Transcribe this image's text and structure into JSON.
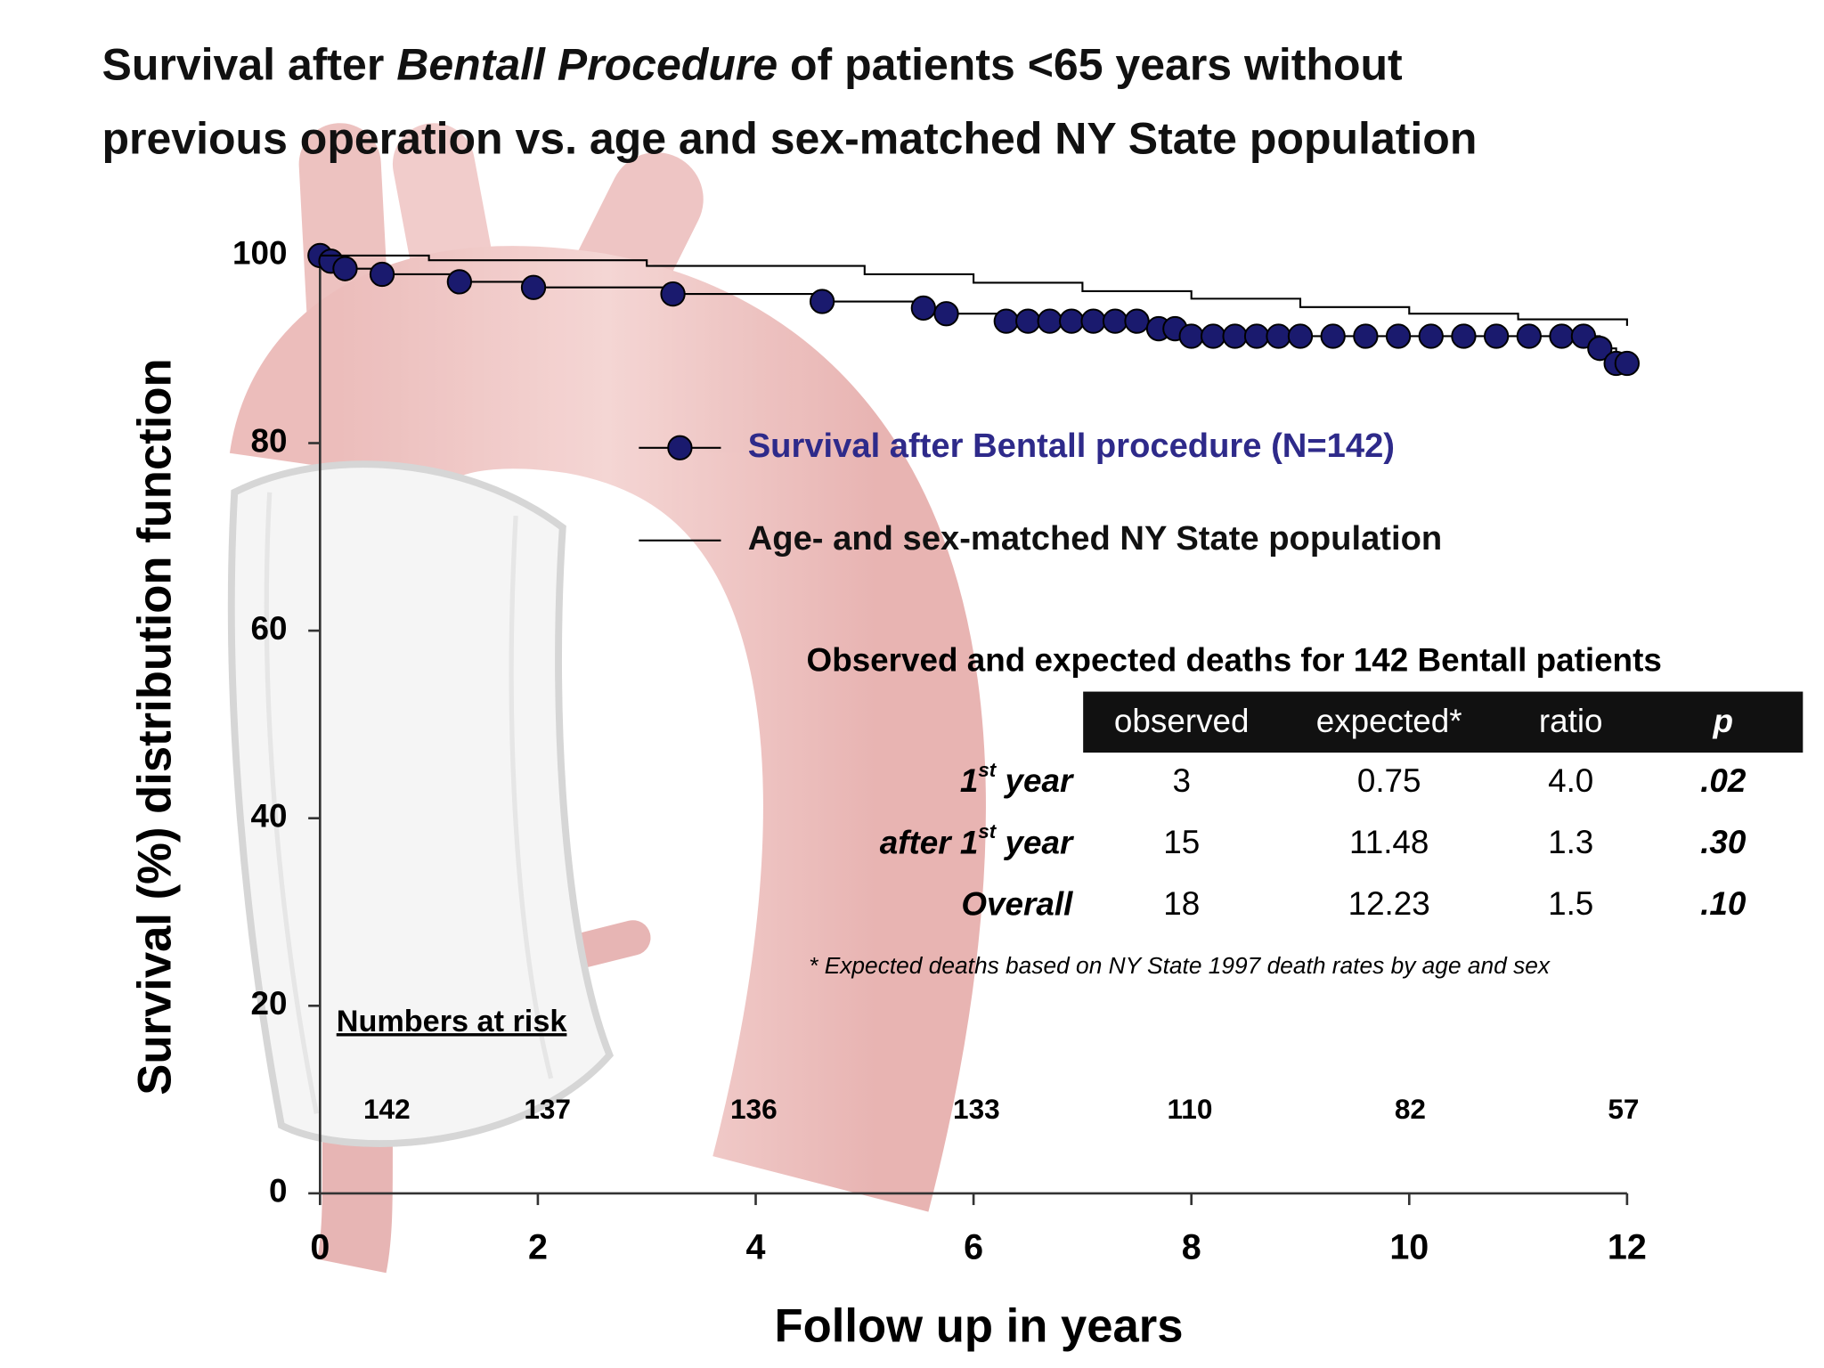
{
  "chart_data": {
    "type": "line",
    "title": [
      "Survival after ",
      "Bentall Procedure",
      " of patients <65 years without",
      "previous operation vs. age and sex-matched NY State population"
    ],
    "x_label": "Follow up in years",
    "y_label": "Survival (%) distribution function",
    "xlim": [
      0,
      12
    ],
    "xticks": [
      0,
      2,
      4,
      6,
      8,
      10,
      12
    ],
    "ylim": [
      0,
      100
    ],
    "yticks": [
      0,
      20,
      40,
      60,
      80,
      100
    ],
    "step": true,
    "series": [
      {
        "name": "Survival after Bentall procedure (N=142)",
        "color": "#1a1a6e",
        "markers": true,
        "x": [
          0,
          0.1,
          0.23,
          0.57,
          1.28,
          1.96,
          3.24,
          4.61,
          5.54,
          5.75,
          6.3,
          6.5,
          6.7,
          6.9,
          7.1,
          7.3,
          7.5,
          7.7,
          7.85,
          8.0,
          8.2,
          8.4,
          8.6,
          8.8,
          9.0,
          9.3,
          9.6,
          9.9,
          10.2,
          10.5,
          10.8,
          11.1,
          11.4,
          11.6,
          11.75,
          11.9,
          12.0
        ],
        "values": [
          100,
          99.4,
          98.6,
          98,
          97.2,
          96.6,
          95.9,
          95.1,
          94.4,
          93.8,
          93,
          93,
          93,
          93,
          93,
          93,
          93,
          92.2,
          92.2,
          91.4,
          91.4,
          91.4,
          91.4,
          91.4,
          91.4,
          91.4,
          91.4,
          91.4,
          91.4,
          91.4,
          91.4,
          91.4,
          91.4,
          91.4,
          90.1,
          88.5,
          88.5
        ]
      },
      {
        "name": "Age- and sex-matched NY State population",
        "color": "#000000",
        "markers": false,
        "x": [
          0,
          1,
          3,
          5,
          6,
          7,
          8,
          9,
          10,
          11,
          12
        ],
        "values": [
          100,
          99.5,
          98.9,
          98,
          97.1,
          96.2,
          95.4,
          94.5,
          93.8,
          93.2,
          92.5
        ]
      }
    ],
    "numbers_at_risk": {
      "title": "Numbers at risk",
      "values": [
        142,
        137,
        136,
        133,
        110,
        82,
        57
      ]
    },
    "table": {
      "title": "Observed and expected deaths for 142 Bentall patients",
      "header": [
        "observed",
        "expected*",
        "ratio",
        "p"
      ],
      "rows": [
        {
          "label": [
            "1",
            "st",
            " year"
          ],
          "cells": [
            "3",
            "0.75",
            "4.0",
            ".02"
          ]
        },
        {
          "label": [
            "after 1",
            "st",
            " year"
          ],
          "cells": [
            "15",
            "11.48",
            "1.3",
            ".30"
          ]
        },
        {
          "label": [
            "Overall"
          ],
          "cells": [
            "18",
            "12.23",
            "1.5",
            ".10"
          ]
        }
      ],
      "footnote": "* Expected deaths based on NY State 1997 death rates by age and sex"
    }
  }
}
